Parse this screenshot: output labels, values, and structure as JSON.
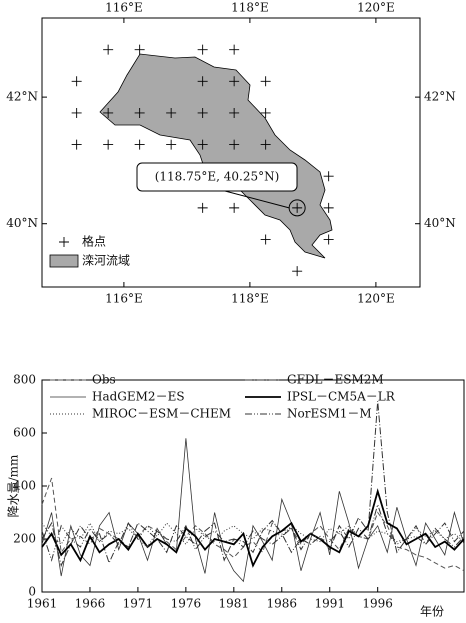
{
  "chart_data": [
    {
      "type": "map",
      "xlim": [
        114.7,
        120.7
      ],
      "ylim": [
        39.0,
        43.25
      ],
      "xticks": [
        {
          "value": 116,
          "label": "116°E"
        },
        {
          "value": 118,
          "label": "118°E"
        },
        {
          "value": 120,
          "label": "120°E"
        }
      ],
      "yticks": [
        {
          "value": 40,
          "label": "40°N"
        },
        {
          "value": 42,
          "label": "42°N"
        }
      ],
      "points": {
        "name": "格点",
        "x": [
          115.75,
          116.25,
          117.25,
          117.75,
          115.25,
          117.25,
          117.75,
          118.25,
          115.25,
          115.75,
          116.25,
          116.75,
          117.25,
          117.75,
          118.25,
          115.25,
          115.75,
          116.25,
          116.75,
          117.25,
          117.75,
          118.25,
          119.25,
          117.25,
          117.75,
          118.75,
          119.25,
          118.25,
          119.25,
          118.75
        ],
        "y": [
          42.75,
          42.75,
          42.75,
          42.75,
          42.25,
          42.25,
          42.25,
          42.25,
          41.75,
          41.75,
          41.75,
          41.75,
          41.75,
          41.75,
          41.75,
          41.25,
          41.25,
          41.25,
          41.25,
          41.25,
          41.25,
          41.25,
          40.75,
          40.25,
          40.25,
          40.25,
          40.25,
          39.75,
          39.75,
          39.25
        ]
      },
      "region": {
        "name": "滦河流域",
        "color": "#a9a9a9"
      },
      "annotation": {
        "text": "(118.75°E, 40.25°N)",
        "x": 118.75,
        "y": 40.25
      }
    },
    {
      "type": "line",
      "ylabel": "降水量/mm",
      "xlabel": "年份",
      "xlim": [
        1961,
        2005
      ],
      "ylim": [
        0,
        800
      ],
      "xticks": [
        1961,
        1966,
        1971,
        1976,
        1981,
        1986,
        1991,
        1996
      ],
      "yticks": [
        0,
        200,
        400,
        600,
        800
      ],
      "x": [
        1961,
        1962,
        1963,
        1964,
        1965,
        1966,
        1967,
        1968,
        1969,
        1970,
        1971,
        1972,
        1973,
        1974,
        1975,
        1976,
        1977,
        1978,
        1979,
        1980,
        1981,
        1982,
        1983,
        1984,
        1985,
        1986,
        1987,
        1988,
        1989,
        1990,
        1991,
        1992,
        1993,
        1994,
        1995,
        1996,
        1997,
        1998,
        1999,
        2000,
        2001,
        2002,
        2003,
        2004,
        2005
      ],
      "series": [
        {
          "name": "Obs",
          "color": "#555555",
          "values": [
            330,
            430,
            150,
            200,
            210,
            180,
            240,
            220,
            200,
            170,
            210,
            250,
            230,
            190,
            160,
            210,
            250,
            220,
            180,
            160,
            130,
            170,
            190,
            150,
            260,
            230,
            240,
            180,
            220,
            250,
            200,
            160,
            240,
            210,
            200,
            300,
            250,
            170,
            160,
            140,
            130,
            110,
            90,
            100,
            80
          ]
        },
        {
          "name": "HadGEM2－ES",
          "color": "#333333",
          "values": [
            180,
            300,
            60,
            250,
            140,
            100,
            250,
            300,
            160,
            260,
            220,
            120,
            240,
            180,
            150,
            580,
            200,
            70,
            300,
            150,
            80,
            40,
            250,
            190,
            120,
            350,
            260,
            80,
            200,
            300,
            140,
            380,
            260,
            90,
            200,
            250,
            150,
            320,
            200,
            100,
            260,
            200,
            140,
            300,
            180
          ]
        },
        {
          "name": "MIROC－ESM－CHEM",
          "color": "#333333",
          "values": [
            260,
            210,
            180,
            240,
            200,
            260,
            190,
            230,
            220,
            240,
            200,
            250,
            210,
            260,
            220,
            180,
            240,
            210,
            190,
            230,
            250,
            220,
            200,
            240,
            230,
            210,
            250,
            220,
            200,
            190,
            240,
            220,
            250,
            210,
            200,
            230,
            220,
            180,
            200,
            240,
            210,
            230,
            200,
            220,
            190
          ]
        },
        {
          "name": "GFDL－ESM2M",
          "color": "#333333",
          "values": [
            200,
            260,
            100,
            180,
            250,
            200,
            220,
            110,
            190,
            170,
            260,
            230,
            200,
            150,
            250,
            210,
            180,
            230,
            260,
            120,
            200,
            190,
            150,
            230,
            270,
            220,
            150,
            200,
            180,
            210,
            160,
            250,
            200,
            280,
            230,
            720,
            300,
            150,
            200,
            250,
            180,
            220,
            260,
            190,
            230
          ]
        },
        {
          "name": "IPSL－CM5A－LR",
          "color": "#000000",
          "values": [
            170,
            220,
            140,
            180,
            120,
            210,
            150,
            180,
            200,
            160,
            220,
            170,
            200,
            180,
            150,
            240,
            210,
            160,
            200,
            190,
            180,
            220,
            100,
            170,
            210,
            230,
            260,
            190,
            220,
            200,
            170,
            150,
            230,
            210,
            250,
            380,
            260,
            240,
            180,
            200,
            220,
            170,
            190,
            160,
            200
          ]
        },
        {
          "name": "NorESM1－M",
          "color": "#333333",
          "values": [
            230,
            120,
            250,
            200,
            170,
            240,
            190,
            220,
            180,
            260,
            200,
            170,
            230,
            200,
            190,
            250,
            160,
            210,
            230,
            190,
            200,
            170,
            230,
            200,
            180,
            210,
            240,
            160,
            220,
            200,
            190,
            230,
            170,
            240,
            200,
            330,
            220,
            190,
            200,
            210,
            180,
            240,
            200,
            170,
            210
          ]
        }
      ]
    }
  ]
}
